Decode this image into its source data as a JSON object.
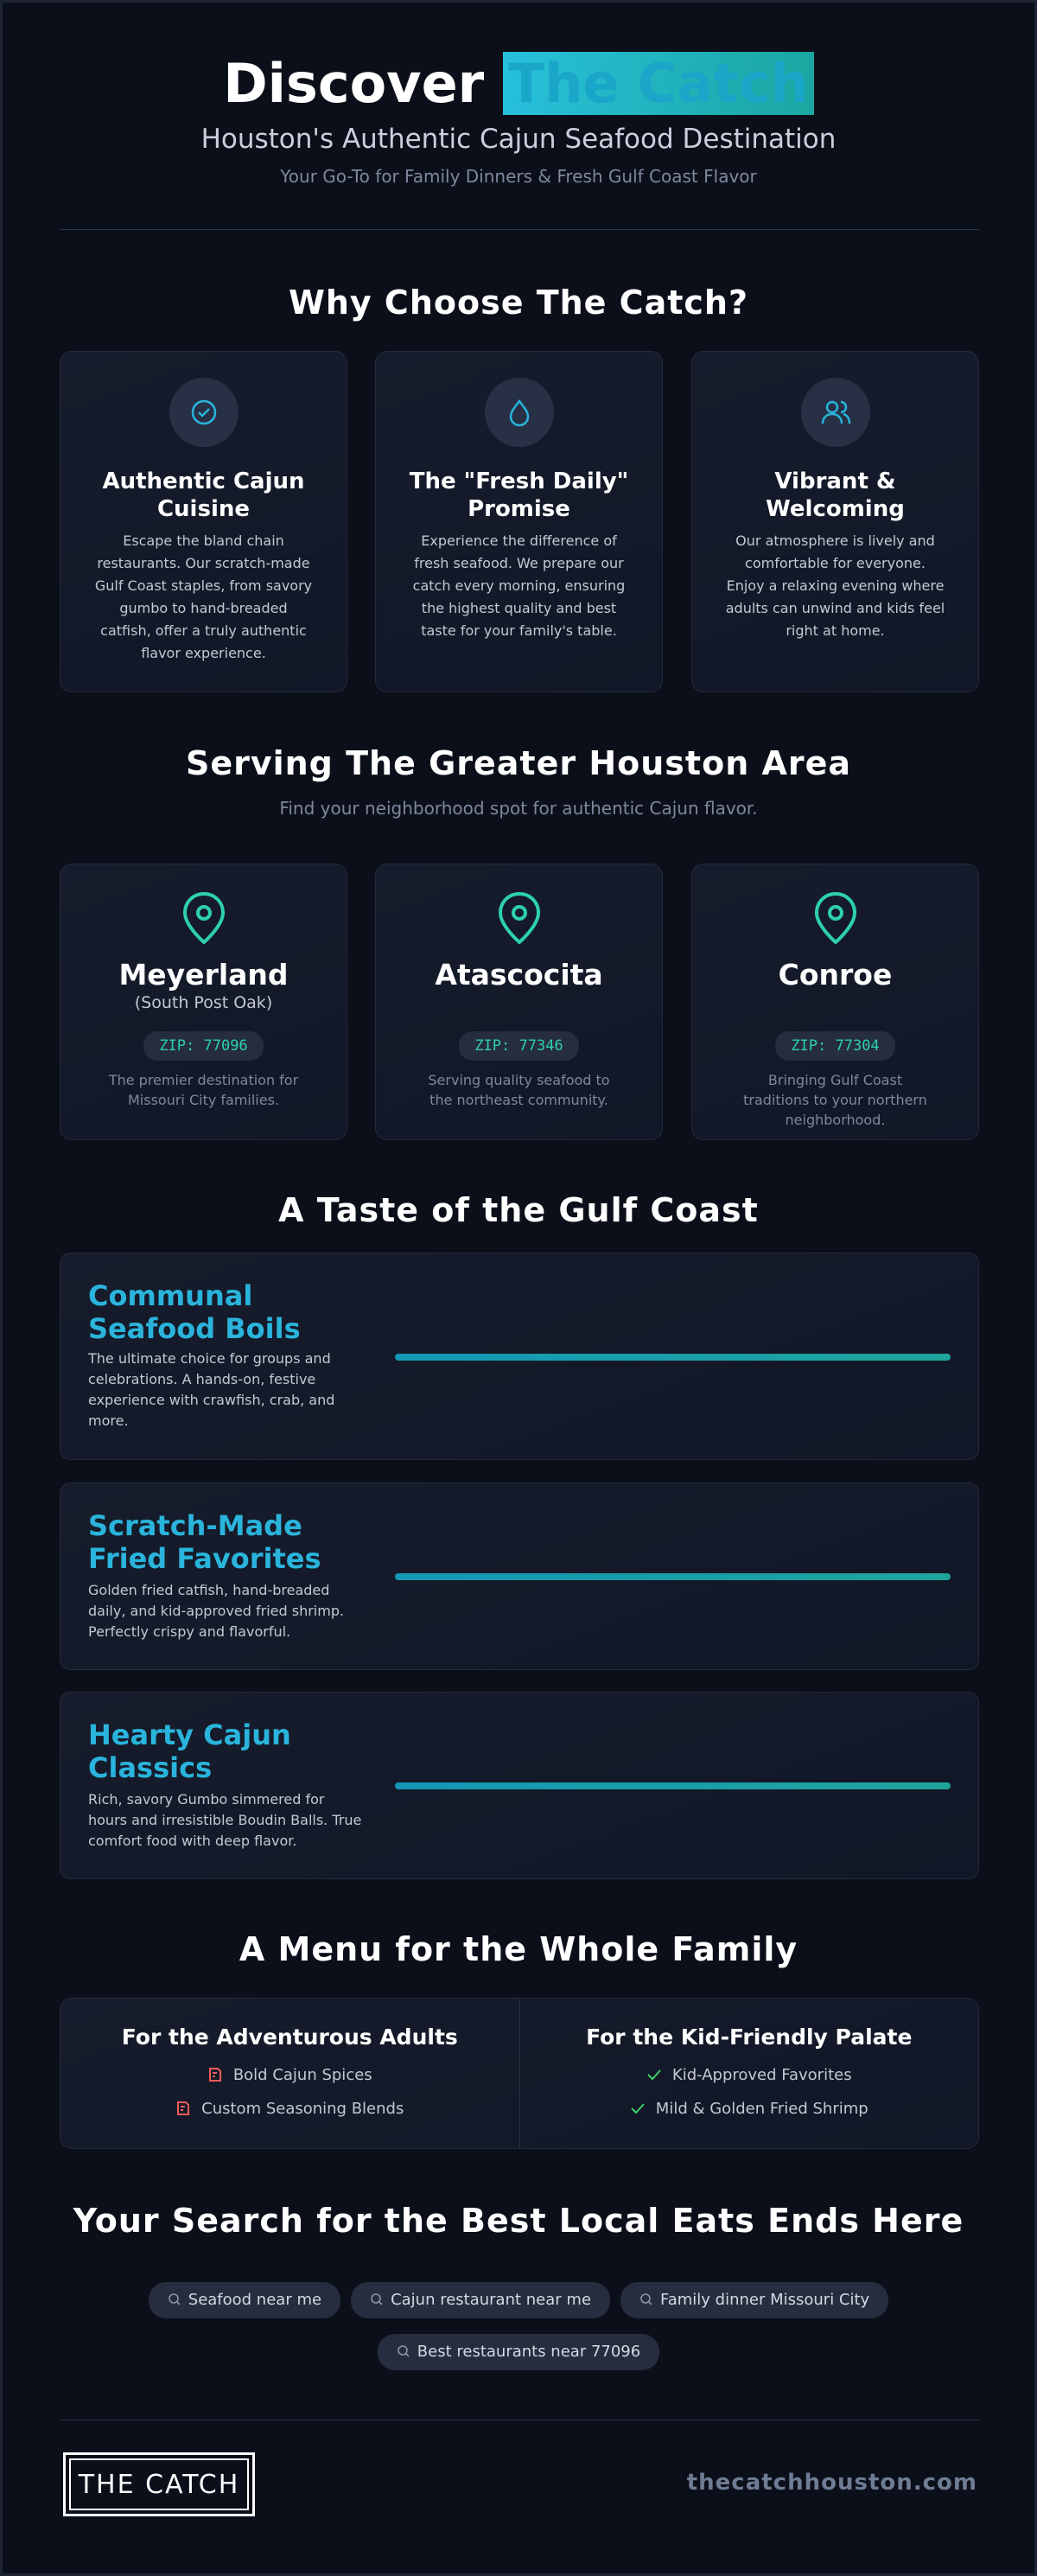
{
  "header": {
    "title_prefix": "Discover",
    "title_highlight": "The Catch",
    "subtitle": "Houston's Authentic Cajun Seafood Destination",
    "tagline": "Your Go-To for Family Dinners & Fresh Gulf Coast Flavor"
  },
  "why": {
    "heading": "Why Choose The Catch?",
    "cards": [
      {
        "title": "Authentic Cajun Cuisine",
        "text": "Escape the bland chain restaurants. Our scratch-made Gulf Coast staples, from savory gumbo to hand-breaded catfish, offer a truly authentic flavor experience."
      },
      {
        "title": "The \"Fresh Daily\" Promise",
        "text": "Experience the difference of fresh seafood. We prepare our catch every morning, ensuring the highest quality and best taste for your family's table."
      },
      {
        "title": "Vibrant & Welcoming",
        "text": "Our atmosphere is lively and comfortable for everyone. Enjoy a relaxing evening where adults can unwind and kids feel right at home."
      }
    ]
  },
  "areas": {
    "heading": "Serving The Greater Houston Area",
    "subheading": "Find your neighborhood spot for authentic Cajun flavor.",
    "locations": [
      {
        "name": "Meyerland",
        "note": "(South Post Oak)",
        "zip": "ZIP: 77096",
        "text": "The premier destination for Missouri City families."
      },
      {
        "name": "Atascocita",
        "zip": "ZIP: 77346",
        "text": "Serving quality seafood to the northeast community."
      },
      {
        "name": "Conroe",
        "zip": "ZIP: 77304",
        "text": "Bringing Gulf Coast traditions to your northern neighborhood."
      }
    ]
  },
  "taste": {
    "heading": "A Taste of the Gulf Coast",
    "items": [
      {
        "title": "Communal Seafood Boils",
        "text": "The ultimate choice for groups and celebrations. A hands-on, festive experience with crawfish, crab, and more."
      },
      {
        "title": "Scratch-Made Fried Favorites",
        "text": "Golden fried catfish, hand-breaded daily, and kid-approved fried shrimp. Perfectly crispy and flavorful."
      },
      {
        "title": "Hearty Cajun Classics",
        "text": "Rich, savory Gumbo simmered for hours and irresistible Boudin Balls. True comfort food with deep flavor."
      }
    ]
  },
  "menu": {
    "heading": "A Menu for the Whole Family",
    "columns": [
      {
        "title": "For the Adventurous Adults",
        "items": [
          "Bold Cajun Spices",
          "Custom Seasoning Blends"
        ]
      },
      {
        "title": "For the Kid-Friendly Palate",
        "items": [
          "Kid-Approved Favorites",
          "Mild & Golden Fried Shrimp"
        ]
      }
    ]
  },
  "search": {
    "heading": "Your Search for the Best Local Eats Ends Here",
    "tags": [
      "Seafood near me",
      "Cajun restaurant near me",
      "Family dinner Missouri City",
      "Best restaurants near 77096"
    ]
  },
  "footer": {
    "logo": "THE CATCH",
    "url": "thecatchhouston.com"
  }
}
